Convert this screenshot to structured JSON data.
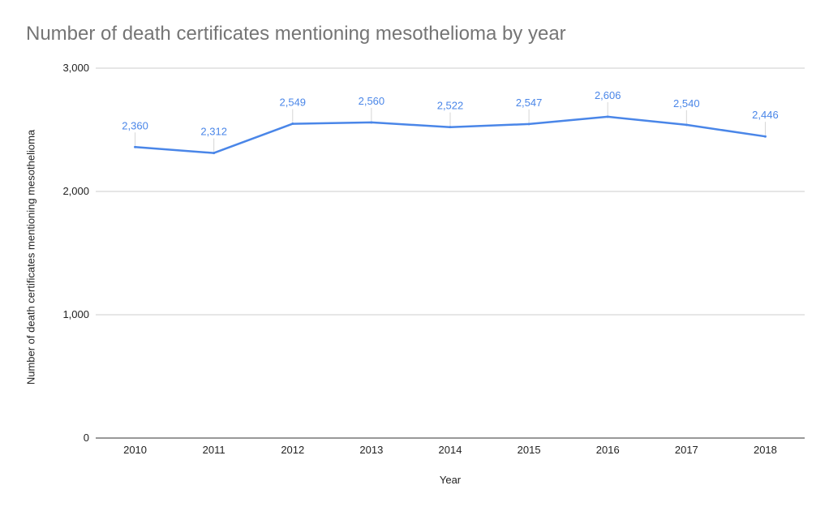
{
  "chart_data": {
    "type": "line",
    "title": "Number of death certificates mentioning mesothelioma by year",
    "xlabel": "Year",
    "ylabel": "Number of death certificates mentioning mesothelioma",
    "categories": [
      "2010",
      "2011",
      "2012",
      "2013",
      "2014",
      "2015",
      "2016",
      "2017",
      "2018"
    ],
    "series": [
      {
        "values": [
          2360,
          2312,
          2549,
          2560,
          2522,
          2547,
          2606,
          2540,
          2446
        ]
      }
    ],
    "data_labels": [
      "2,360",
      "2,312",
      "2,549",
      "2,560",
      "2,522",
      "2,547",
      "2,606",
      "2,540",
      "2,446"
    ],
    "ylim": [
      0,
      3000
    ],
    "yticks": [
      0,
      1000,
      2000,
      3000
    ],
    "ytick_labels": [
      "0",
      "1,000",
      "2,000",
      "3,000"
    ],
    "grid": true,
    "legend": "none",
    "line_color": "#4a86e8",
    "label_color": "#4a86e8"
  }
}
